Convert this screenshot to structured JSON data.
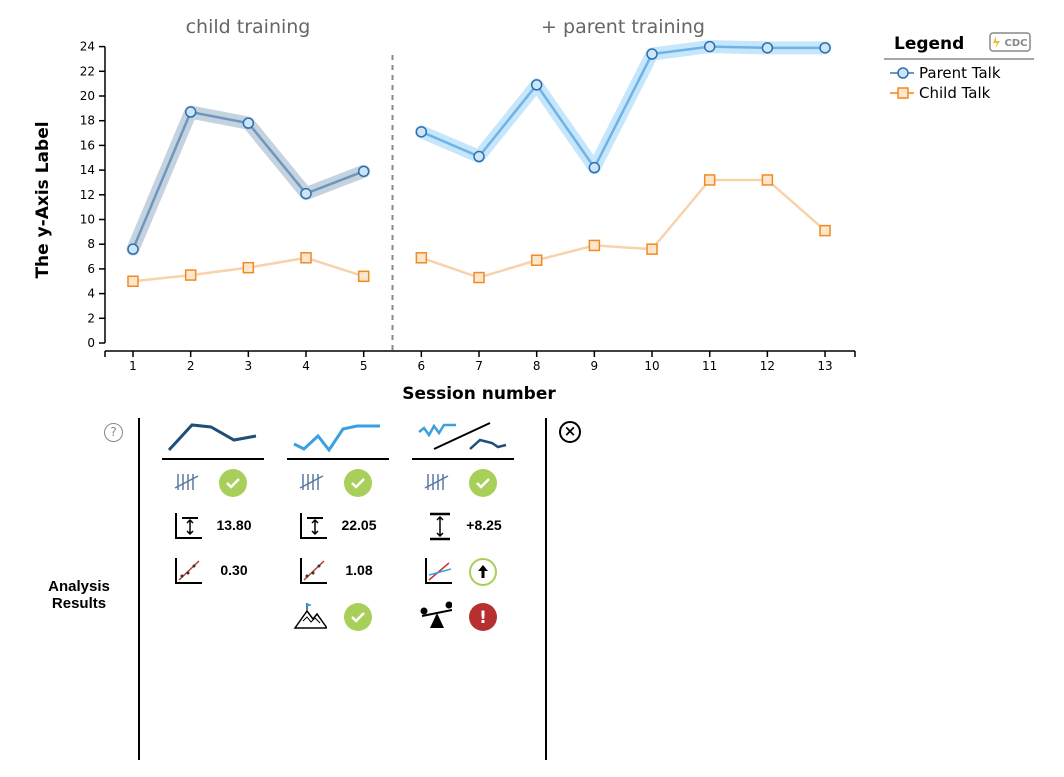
{
  "chart_data": {
    "type": "line",
    "phases": [
      {
        "title": "child training",
        "sessions": [
          1,
          2,
          3,
          4,
          5
        ]
      },
      {
        "title": "+ parent training",
        "sessions": [
          6,
          7,
          8,
          9,
          10,
          11,
          12,
          13
        ]
      }
    ],
    "x": [
      1,
      2,
      3,
      4,
      5,
      6,
      7,
      8,
      9,
      10,
      11,
      12,
      13
    ],
    "xlabel": "Session number",
    "ylabel": "The y-Axis Label",
    "ylim": [
      0,
      24
    ],
    "yticks": [
      0,
      2,
      4,
      6,
      8,
      10,
      12,
      14,
      16,
      18,
      20,
      22,
      24
    ],
    "phase_divider_after_session": 5,
    "series": [
      {
        "name": "Parent Talk",
        "values": [
          7.6,
          18.7,
          17.8,
          12.1,
          13.9,
          17.1,
          15.1,
          20.9,
          14.2,
          23.4,
          24.0,
          23.9,
          23.9
        ],
        "color": "#5a8ab5",
        "color_phase2": "#3a9ad9",
        "marker": "circle"
      },
      {
        "name": "Child Talk",
        "values": [
          5.0,
          5.5,
          6.1,
          6.9,
          5.4,
          6.9,
          5.3,
          6.7,
          7.9,
          7.6,
          13.2,
          13.2,
          9.1
        ],
        "color": "#f5c796",
        "marker_color": "#f08a24",
        "marker": "square"
      }
    ],
    "legend": {
      "title": "Legend",
      "badge": "CDC",
      "placement": "top-right"
    },
    "grid": false
  },
  "analysis": {
    "label": "Analysis Results",
    "help": "?",
    "close": "×",
    "columns": [
      {
        "level_change": "13.80",
        "slope": "0.30",
        "stability_ok": true
      },
      {
        "level_change": "22.05",
        "slope": "1.08",
        "stability_ok": true,
        "peak_ok": true
      },
      {
        "level_change": "+8.25",
        "trend_direction": "up",
        "balance_alert": "!"
      }
    ],
    "colors": {
      "ok": "#a8cf5a",
      "alert": "#b5302f",
      "dark_line": "#1f4e79",
      "light_line": "#3aa0e0"
    }
  }
}
